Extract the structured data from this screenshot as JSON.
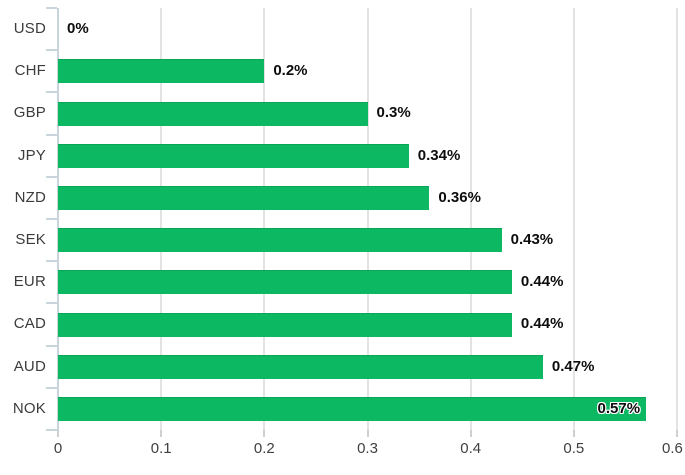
{
  "chart_data": {
    "type": "bar",
    "orientation": "horizontal",
    "title": "",
    "categories": [
      "USD",
      "CHF",
      "GBP",
      "JPY",
      "NZD",
      "SEK",
      "EUR",
      "CAD",
      "AUD",
      "NOK"
    ],
    "values": [
      0,
      0.2,
      0.3,
      0.34,
      0.36,
      0.43,
      0.44,
      0.44,
      0.47,
      0.57
    ],
    "value_labels": [
      "0%",
      "0.2%",
      "0.3%",
      "0.34%",
      "0.36%",
      "0.43%",
      "0.44%",
      "0.44%",
      "0.47%",
      "0.57%"
    ],
    "x_ticks": [
      "0",
      "0.1",
      "0.2",
      "0.3",
      "0.4",
      "0.5",
      "0.6"
    ],
    "xlim": [
      0,
      0.6
    ],
    "grid": true,
    "legend": false,
    "colors": {
      "bar": "#0db863",
      "grid": "#e3e3e3",
      "axis": "#c9d5dc",
      "x_tick": "#cfcfcf",
      "category_label": "#3c3c3c",
      "value_label": "#0d0d0d",
      "tick_label": "#3f3f3f",
      "background": "#ffffff"
    }
  }
}
